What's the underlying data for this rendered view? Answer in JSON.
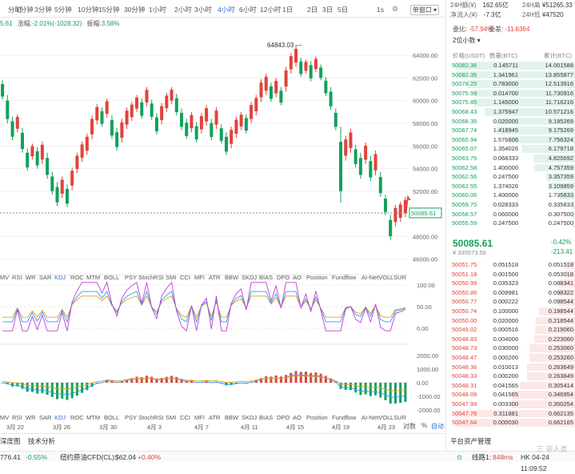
{
  "top_stats": {
    "vol_label": "24H额(¥)",
    "vol_value": "162.65亿",
    "high_label": "24H高",
    "high_value": "¥51265.33",
    "netflow_label": "净流入(¥)",
    "netflow_value": "-7.3亿",
    "low_label": "24H低",
    "low_value": "¥47520"
  },
  "toolbar": {
    "timeframes": [
      "分时",
      "1分钟",
      "3分钟",
      "5分钟",
      "10分钟",
      "15分钟",
      "30分钟",
      "1小时",
      "2小时",
      "3小时",
      "4小时",
      "6小时",
      "12小时",
      "1日",
      "2日",
      "3日",
      "5日"
    ],
    "active": "4小时",
    "interval_1s": "1s",
    "main_window": "单窗口"
  },
  "price_info": {
    "open_fragment": "5.61",
    "change_label": "涨幅:",
    "change_value": "-2.01%(-1028.32)",
    "amplitude_label": "振幅:",
    "amplitude_value": "3.58%"
  },
  "chart_data": {
    "type": "candlestick",
    "high_marker": "64843.03",
    "current_price": "50085.61",
    "y_axis_ticks": [
      "64000.00",
      "62000.00",
      "60000.00",
      "58000.00",
      "56000.00",
      "54000.00",
      "52000.00",
      "50000.00",
      "48000.00",
      "46000.00"
    ],
    "macd_axis_ticks": [
      "2000.00",
      "1000.00",
      "0.00",
      "-1000.00",
      "-2000.00"
    ],
    "kdj_axis_ticks": [
      "100.00",
      "50.00",
      "0.00"
    ],
    "x_axis_labels": [
      "3月 22",
      "3月 26",
      "3月 30",
      "4月 3",
      "4月 7",
      "4月 11",
      "4月 15",
      "4月 19",
      "4月 23"
    ],
    "candle_ranges": [
      [
        60100,
        61800
      ],
      [
        58000,
        60500
      ],
      [
        56500,
        58600
      ],
      [
        57200,
        58800
      ],
      [
        55400,
        57600
      ],
      [
        53800,
        55800
      ],
      [
        54800,
        56200
      ],
      [
        54000,
        55900
      ],
      [
        54400,
        56400
      ],
      [
        53100,
        55400
      ],
      [
        51700,
        53700
      ],
      [
        50700,
        52800
      ],
      [
        51400,
        53300
      ],
      [
        50600,
        52600
      ],
      [
        52100,
        54100
      ],
      [
        53600,
        55400
      ],
      [
        54600,
        56400
      ],
      [
        55200,
        57100
      ],
      [
        56600,
        58700
      ],
      [
        57900,
        59700
      ],
      [
        57700,
        59400
      ],
      [
        58500,
        60200
      ],
      [
        56600,
        58700
      ],
      [
        55600,
        57600
      ],
      [
        56300,
        58400
      ],
      [
        57500,
        59400
      ],
      [
        58200,
        59900
      ],
      [
        59000,
        60500
      ],
      [
        58400,
        60200
      ],
      [
        59500,
        61200
      ],
      [
        58300,
        60100
      ],
      [
        57000,
        58900
      ],
      [
        57900,
        59800
      ],
      [
        59000,
        60700
      ],
      [
        59700,
        61200
      ],
      [
        58700,
        60600
      ],
      [
        57400,
        59300
      ],
      [
        56600,
        58400
      ],
      [
        57200,
        59000
      ],
      [
        56300,
        58100
      ],
      [
        57100,
        58900
      ],
      [
        57800,
        59600
      ],
      [
        56500,
        58400
      ],
      [
        57500,
        59400
      ],
      [
        56200,
        57900
      ],
      [
        55200,
        57200
      ],
      [
        55800,
        57700
      ],
      [
        56700,
        58600
      ],
      [
        57400,
        59000
      ],
      [
        57100,
        58800
      ],
      [
        58000,
        59900
      ],
      [
        58700,
        60500
      ],
      [
        59900,
        61900
      ],
      [
        60500,
        62400
      ],
      [
        59900,
        61600
      ],
      [
        60300,
        62000
      ],
      [
        59600,
        61200
      ],
      [
        60800,
        63000
      ],
      [
        62400,
        64200
      ],
      [
        63000,
        64843
      ],
      [
        62100,
        63800
      ],
      [
        62400,
        63600
      ],
      [
        61700,
        63500
      ],
      [
        62500,
        63900
      ],
      [
        61800,
        63200
      ],
      [
        60400,
        62100
      ],
      [
        59200,
        61200
      ],
      [
        57400,
        59300
      ],
      [
        51000,
        57700
      ],
      [
        54700,
        56900
      ],
      [
        55400,
        57500
      ],
      [
        54100,
        56100
      ],
      [
        53100,
        55400
      ],
      [
        54400,
        56300
      ],
      [
        52900,
        55100
      ],
      [
        53400,
        55600
      ],
      [
        51500,
        53700
      ],
      [
        49900,
        51700
      ],
      [
        47700,
        49900
      ],
      [
        48900,
        50800
      ],
      [
        49300,
        51100
      ],
      [
        49700,
        51500
      ]
    ],
    "closes_up": [
      false,
      false,
      false,
      true,
      false,
      false,
      true,
      false,
      true,
      false,
      false,
      false,
      true,
      false,
      true,
      true,
      true,
      true,
      true,
      true,
      false,
      true,
      false,
      false,
      true,
      true,
      true,
      true,
      false,
      true,
      false,
      false,
      true,
      true,
      true,
      false,
      false,
      false,
      true,
      false,
      true,
      true,
      false,
      true,
      false,
      false,
      true,
      true,
      true,
      false,
      true,
      true,
      true,
      true,
      false,
      true,
      false,
      true,
      true,
      true,
      false,
      true,
      false,
      true,
      false,
      false,
      false,
      false,
      false,
      true,
      true,
      false,
      false,
      true,
      false,
      true,
      false,
      false,
      false,
      true,
      true,
      true
    ],
    "ylim": [
      45200,
      66200
    ]
  },
  "indicator_tabs_1": [
    "MV",
    "RSI",
    "WR",
    "SAR",
    "KDJ",
    "ROC",
    "MTM",
    "BOLL",
    "PSY",
    "StochRSI",
    "SMI",
    "CCI",
    "MFI",
    "ATR",
    "BBW",
    "SKDJ",
    "BIAS",
    "DPO",
    "AO",
    "Position",
    "Fundflow",
    "AI-NetVOL",
    "LSUR"
  ],
  "indicator_tabs_2": [
    "MV",
    "RSI",
    "WR",
    "SAR",
    "KDJ",
    "ROC",
    "MTM",
    "BOLL",
    "PSY",
    "StochRSI",
    "SMI",
    "CCI",
    "MFI",
    "ATR",
    "BBW",
    "SKDJ",
    "BIAS",
    "DPO",
    "AO",
    "Position",
    "Fundflow",
    "AI-NetVOL",
    "LSUR"
  ],
  "active_indicator": "KDJ",
  "x_controls": {
    "log": "对数",
    "pct": "%",
    "auto": "自动"
  },
  "bottom_tabs": [
    "深度图",
    "技术分析"
  ],
  "platform_label": "平台资产管理",
  "orderbook": {
    "ratio_label": "委比",
    "ratio_value": "-57.94%",
    "diff_label": "委差",
    "diff_value": "-11.6364",
    "precision": "2位小数",
    "col_price": "价格(USDT)",
    "col_qty": "数量(BTC)",
    "col_total": "累计(BTC)",
    "asks": [
      [
        "50082.36",
        "0.145711",
        "14.001588"
      ],
      [
        "50082.35",
        "1.341961",
        "13.855877"
      ],
      [
        "50078.25",
        "0.783000",
        "12.513916"
      ],
      [
        "50075.99",
        "0.014700",
        "11.730916"
      ],
      [
        "50075.85",
        "1.145000",
        "11.716216"
      ],
      [
        "50068.43",
        "1.375947",
        "10.571216"
      ],
      [
        "50068.35",
        "0.020000",
        "9.195269"
      ],
      [
        "50067.74",
        "1.418945",
        "9.175269"
      ],
      [
        "50065.94",
        "1.576606",
        "7.756324"
      ],
      [
        "50065.07",
        "1.354026",
        "6.179718"
      ],
      [
        "50063.75",
        "0.068333",
        "4.825692"
      ],
      [
        "50062.58",
        "1.400000",
        "4.757359"
      ],
      [
        "50062.56",
        "0.247500",
        "3.357359"
      ],
      [
        "50062.55",
        "1.374026",
        "3.109859"
      ],
      [
        "50060.06",
        "1.400000",
        "1.735833"
      ],
      [
        "50059.75",
        "0.028333",
        "0.335833"
      ],
      [
        "50058.57",
        "0.060000",
        "0.307500"
      ],
      [
        "50055.59",
        "0.247500",
        "0.247500"
      ]
    ],
    "last_price": "50085.61",
    "last_change": "-0.42%",
    "last_cny": "¥ 335573.59",
    "last_diff": "-213.41",
    "bids": [
      [
        "50051.75",
        "0.051518",
        "0.051518"
      ],
      [
        "50051.18",
        "0.001500",
        "0.053018"
      ],
      [
        "50050.99",
        "0.035323",
        "0.088341"
      ],
      [
        "50050.86",
        "0.009981",
        "0.098322"
      ],
      [
        "50050.77",
        "0.000222",
        "0.098544"
      ],
      [
        "50050.74",
        "0.100000",
        "0.198544"
      ],
      [
        "50050.00",
        "0.020000",
        "0.218544"
      ],
      [
        "50049.02",
        "0.000516",
        "0.219060"
      ],
      [
        "50048.83",
        "0.004000",
        "0.223060"
      ],
      [
        "50048.73",
        "0.030000",
        "0.253060"
      ],
      [
        "50048.47",
        "0.000200",
        "0.253260"
      ],
      [
        "50048.36",
        "0.010013",
        "0.263649"
      ],
      [
        "50048.33",
        "0.000200",
        "0.263849"
      ],
      [
        "50048.31",
        "0.041565",
        "0.305414"
      ],
      [
        "50048.09",
        "0.041565",
        "0.346954"
      ],
      [
        "50047.99",
        "0.003300",
        "0.350254"
      ],
      [
        "50047.78",
        "0.311881",
        "0.662135"
      ],
      [
        "50047.64",
        "0.000030",
        "0.662165"
      ]
    ]
  },
  "status_bar": {
    "left_value": "776.41",
    "left_change": "-0.55%",
    "oil_label": "纽约原油CFD(CL):",
    "oil_value": "$62.04",
    "oil_change": "+0.40%",
    "line_label": "线路1:",
    "line_ms": "848ms",
    "time": "HK 04-24 11:09:52",
    "watermark": "三 非人类"
  },
  "colors": {
    "up": "#e0433b",
    "down": "#12a05c",
    "accent": "#2a6ee0"
  }
}
